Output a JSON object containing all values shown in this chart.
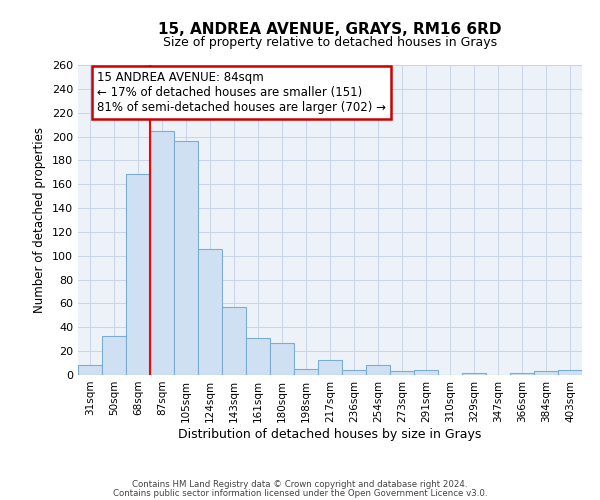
{
  "title": "15, ANDREA AVENUE, GRAYS, RM16 6RD",
  "subtitle": "Size of property relative to detached houses in Grays",
  "xlabel": "Distribution of detached houses by size in Grays",
  "ylabel": "Number of detached properties",
  "categories": [
    "31sqm",
    "50sqm",
    "68sqm",
    "87sqm",
    "105sqm",
    "124sqm",
    "143sqm",
    "161sqm",
    "180sqm",
    "198sqm",
    "217sqm",
    "236sqm",
    "254sqm",
    "273sqm",
    "291sqm",
    "310sqm",
    "329sqm",
    "347sqm",
    "366sqm",
    "384sqm",
    "403sqm"
  ],
  "values": [
    8,
    33,
    169,
    205,
    196,
    106,
    57,
    31,
    27,
    5,
    13,
    4,
    8,
    3,
    4,
    0,
    2,
    0,
    2,
    3,
    4
  ],
  "bar_color": "#cfe0f3",
  "bar_edge_color": "#7aadd4",
  "ylim": [
    0,
    260
  ],
  "yticks": [
    0,
    20,
    40,
    60,
    80,
    100,
    120,
    140,
    160,
    180,
    200,
    220,
    240,
    260
  ],
  "red_line_index": 3,
  "annotation_title": "15 ANDREA AVENUE: 84sqm",
  "annotation_line1": "← 17% of detached houses are smaller (151)",
  "annotation_line2": "81% of semi-detached houses are larger (702) →",
  "annotation_box_color": "#ffffff",
  "annotation_box_edge": "#cc0000",
  "footer1": "Contains HM Land Registry data © Crown copyright and database right 2024.",
  "footer2": "Contains public sector information licensed under the Open Government Licence v3.0.",
  "background_color": "#edf2f9",
  "plot_background": "#ffffff",
  "grid_color": "#c8d4e8"
}
